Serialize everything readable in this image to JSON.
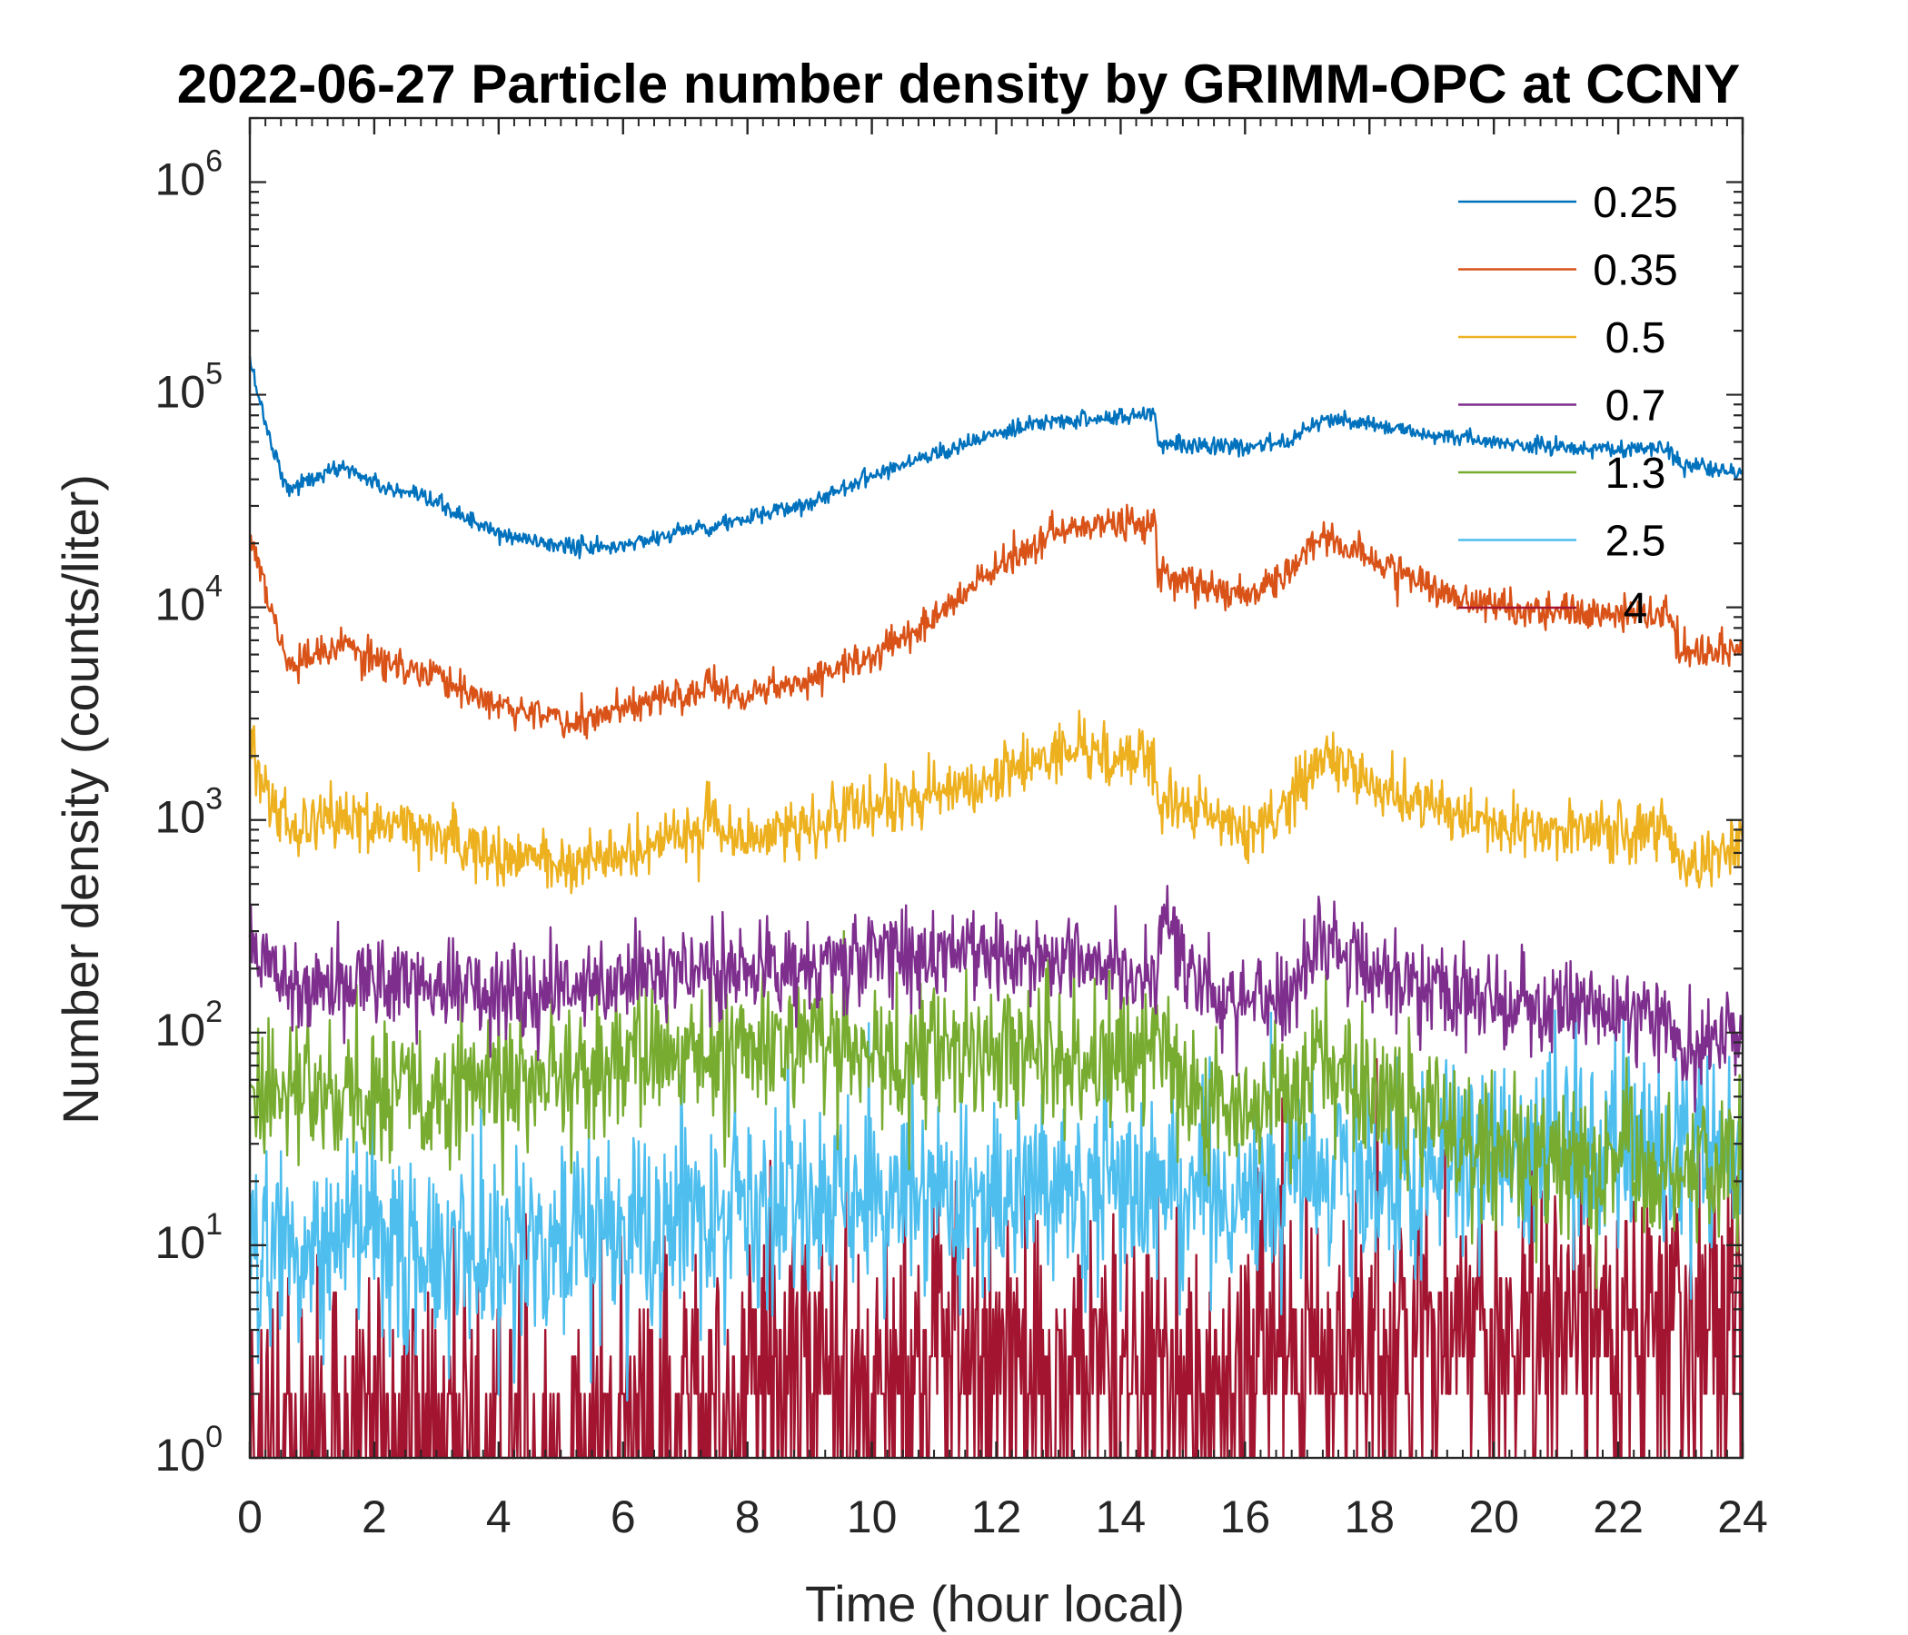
{
  "chart_data": {
    "type": "line",
    "title": "2022-06-27 Particle number density by GRIMM-OPC at CCNY",
    "xlabel": "Time (hour local)",
    "ylabel": "Number density (counts/liter)",
    "xlim": [
      0,
      24
    ],
    "ylim": [
      1,
      2000000
    ],
    "yscale": "log",
    "xticks": [
      0,
      2,
      4,
      6,
      8,
      10,
      12,
      14,
      16,
      18,
      20,
      22,
      24
    ],
    "xtick_labels": [
      "0",
      "2",
      "4",
      "6",
      "8",
      "10",
      "12",
      "14",
      "16",
      "18",
      "20",
      "22",
      "24"
    ],
    "yticks": [
      {
        "value": 1,
        "base": "10",
        "exp": "0"
      },
      {
        "value": 10,
        "base": "10",
        "exp": "1"
      },
      {
        "value": 100,
        "base": "10",
        "exp": "2"
      },
      {
        "value": 1000,
        "base": "10",
        "exp": "3"
      },
      {
        "value": 10000,
        "base": "10",
        "exp": "4"
      },
      {
        "value": 100000,
        "base": "10",
        "exp": "5"
      },
      {
        "value": 1000000,
        "base": "10",
        "exp": "6"
      }
    ],
    "legend_position": "top-right",
    "series": [
      {
        "name": "0.25",
        "color": "#0072BD",
        "noise": 0.02,
        "x": [
          0,
          0.3,
          0.6,
          0.8,
          1.5,
          2.2,
          3,
          4,
          5,
          5.8,
          7,
          8,
          9,
          10,
          11,
          12,
          13,
          14,
          14.55,
          14.6,
          15,
          15.5,
          16,
          16.7,
          17.2,
          18,
          19,
          20,
          21,
          22,
          22.8,
          23,
          23.5,
          24
        ],
        "values": [
          145000,
          65000,
          36000,
          38000,
          46000,
          36000,
          31000,
          22000,
          19500,
          19000,
          23000,
          26000,
          31000,
          42000,
          53000,
          65000,
          76000,
          78000,
          82000,
          60000,
          59000,
          57000,
          56000,
          61000,
          78000,
          72000,
          65000,
          59000,
          57000,
          55000,
          56000,
          47000,
          44000,
          43000
        ]
      },
      {
        "name": "0.35",
        "color": "#D95319",
        "noise": 0.04,
        "x": [
          0,
          0.3,
          0.6,
          1.5,
          2.2,
          3,
          4,
          5,
          5.5,
          6.5,
          7.3,
          7.35,
          7.5,
          8,
          9,
          10,
          11,
          12,
          13,
          14,
          14.55,
          14.6,
          15,
          15.5,
          16,
          16.7,
          17.2,
          18,
          19,
          20,
          21,
          22,
          22.8,
          23,
          23.5,
          24
        ],
        "values": [
          22000,
          11000,
          5200,
          6500,
          5500,
          4700,
          3500,
          3000,
          2900,
          3700,
          4000,
          5500,
          4000,
          4000,
          4700,
          5800,
          9000,
          15000,
          23000,
          25000,
          25000,
          14000,
          13500,
          12500,
          11000,
          15000,
          22000,
          17000,
          12500,
          10000,
          9500,
          9000,
          9500,
          6000,
          6200,
          6400
        ]
      },
      {
        "name": "0.5",
        "color": "#EDB120",
        "noise": 0.07,
        "x": [
          0,
          0.3,
          0.6,
          1.5,
          2.2,
          3,
          4,
          5,
          6,
          7,
          7.3,
          7.35,
          7.5,
          8,
          9,
          10,
          11,
          12,
          13,
          14,
          14.5,
          14.6,
          15,
          15.5,
          16,
          16.7,
          17.3,
          18,
          19,
          20,
          21,
          22,
          22.8,
          23,
          23.5,
          24
        ],
        "values": [
          2600,
          1300,
          950,
          1000,
          950,
          850,
          700,
          630,
          680,
          850,
          900,
          1400,
          850,
          850,
          950,
          1100,
          1300,
          1600,
          2100,
          1900,
          2000,
          1300,
          1200,
          1000,
          850,
          1200,
          2100,
          1500,
          1200,
          950,
          900,
          900,
          950,
          600,
          650,
          800
        ]
      },
      {
        "name": "0.7",
        "color": "#7E2F8E",
        "noise": 0.11,
        "x": [
          0,
          0.5,
          1,
          2,
          3,
          4,
          5,
          6,
          7,
          8,
          9,
          10,
          11,
          12,
          13,
          14,
          14.5,
          14.75,
          15,
          15.5,
          16,
          16.7,
          17.2,
          18,
          19,
          20,
          21,
          22,
          22.8,
          23,
          23.5,
          24
        ],
        "values": [
          260,
          190,
          170,
          180,
          170,
          160,
          170,
          175,
          190,
          200,
          210,
          220,
          240,
          230,
          230,
          200,
          190,
          390,
          220,
          140,
          130,
          160,
          300,
          190,
          160,
          140,
          130,
          120,
          115,
          80,
          90,
          110
        ]
      },
      {
        "name": "1.3",
        "color": "#77AC30",
        "noise": 0.17,
        "x": [
          0,
          1,
          2,
          3,
          4,
          5,
          6,
          7,
          8,
          9,
          10,
          11,
          12,
          13,
          14,
          14.7,
          14.8,
          15,
          15.5,
          16,
          16.7,
          17.2,
          18,
          19,
          20,
          21,
          22,
          23,
          24
        ],
        "values": [
          50,
          52,
          55,
          52,
          55,
          62,
          70,
          78,
          85,
          88,
          80,
          90,
          85,
          75,
          72,
          110,
          75,
          60,
          42,
          45,
          55,
          80,
          50,
          38,
          30,
          25,
          24,
          20,
          25
        ]
      },
      {
        "name": "2.5",
        "color": "#4DBEEE",
        "noise": 0.24,
        "x": [
          0,
          2,
          4,
          6,
          8,
          10,
          12,
          14,
          16,
          18,
          20,
          22,
          24
        ],
        "values": [
          10,
          10,
          10,
          11,
          14,
          17,
          18,
          18,
          17,
          20,
          25,
          26,
          28
        ]
      },
      {
        "name": "4",
        "color": "#A2142F",
        "noise": 0.38,
        "x": [
          0,
          4,
          7.8,
          8,
          12,
          16,
          18,
          20,
          22,
          24
        ],
        "values": [
          1.3,
          1.2,
          1.5,
          2.6,
          2.6,
          2.6,
          3.5,
          4.2,
          4.6,
          4.8
        ]
      }
    ]
  }
}
